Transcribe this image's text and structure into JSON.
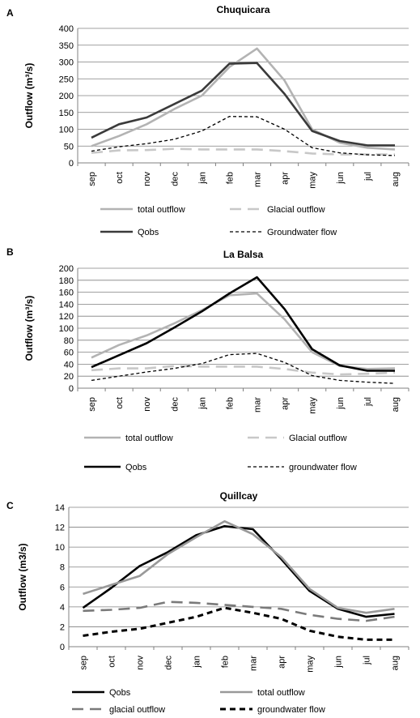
{
  "chart_data": [
    {
      "panel": "A",
      "type": "line",
      "title": "Chuquicara",
      "ylabel": "Outflow (m³/s)",
      "ylim": [
        0,
        400
      ],
      "yticks": [
        0,
        50,
        100,
        150,
        200,
        250,
        300,
        350,
        400
      ],
      "categories": [
        "sep",
        "oct",
        "nov",
        "dec",
        "jan",
        "feb",
        "mar",
        "apr",
        "may",
        "jun",
        "jul",
        "aug"
      ],
      "grid": true,
      "legend_position": "bottom",
      "series": [
        {
          "name": "total outflow",
          "color": "#b3b3b3",
          "dash": "solid",
          "values": [
            50,
            80,
            115,
            160,
            200,
            285,
            340,
            245,
            100,
            60,
            45,
            40
          ]
        },
        {
          "name": "Glacial outflow",
          "color": "#c8c8c8",
          "dash": "long-dash",
          "values": [
            30,
            37,
            38,
            42,
            40,
            40,
            40,
            35,
            28,
            25,
            25,
            25
          ]
        },
        {
          "name": "Qobs",
          "color": "#3a3a3a",
          "dash": "solid",
          "values": [
            75,
            115,
            135,
            175,
            215,
            295,
            297,
            205,
            95,
            65,
            52,
            52
          ]
        },
        {
          "name": "Groundwater flow",
          "color": "#000000",
          "dash": "short-dash",
          "values": [
            35,
            48,
            57,
            70,
            95,
            138,
            137,
            100,
            45,
            30,
            24,
            22
          ]
        }
      ]
    },
    {
      "panel": "B",
      "type": "line",
      "title": "La Balsa",
      "ylabel": "Outflow (m³/s)",
      "ylim": [
        0,
        200
      ],
      "yticks": [
        0,
        20,
        40,
        60,
        80,
        100,
        120,
        140,
        160,
        180,
        200
      ],
      "categories": [
        "sep",
        "oct",
        "nov",
        "dec",
        "jan",
        "feb",
        "mar",
        "apr",
        "may",
        "jun",
        "jul",
        "aug"
      ],
      "grid": true,
      "legend_position": "bottom",
      "series": [
        {
          "name": "total outflow",
          "color": "#b3b3b3",
          "dash": "solid",
          "values": [
            51,
            72,
            88,
            108,
            130,
            155,
            158,
            115,
            60,
            37,
            32,
            33
          ]
        },
        {
          "name": "Glacial outflow",
          "color": "#c8c8c8",
          "dash": "long-dash",
          "values": [
            30,
            33,
            33,
            37,
            36,
            36,
            36,
            32,
            26,
            23,
            24,
            26
          ]
        },
        {
          "name": "Qobs",
          "color": "#000000",
          "dash": "solid",
          "values": [
            35,
            55,
            75,
            101,
            128,
            158,
            185,
            132,
            65,
            38,
            29,
            29
          ]
        },
        {
          "name": "groundwater flow",
          "color": "#000000",
          "dash": "short-dash",
          "values": [
            13,
            20,
            27,
            33,
            41,
            56,
            58,
            43,
            21,
            13,
            10,
            8
          ]
        }
      ]
    },
    {
      "panel": "C",
      "type": "line",
      "title": "Quillcay",
      "ylabel": "Outflow (m3/s)",
      "ylim": [
        0,
        14
      ],
      "yticks": [
        0,
        2,
        4,
        6,
        8,
        10,
        12,
        14
      ],
      "categories": [
        "sep",
        "oct",
        "nov",
        "dec",
        "jan",
        "feb",
        "mar",
        "apr",
        "may",
        "jun",
        "jul",
        "aug"
      ],
      "grid": true,
      "legend_position": "bottom",
      "series": [
        {
          "name": "Qobs",
          "color": "#000000",
          "dash": "solid",
          "values": [
            3.9,
            5.9,
            8.1,
            9.5,
            11.2,
            12.1,
            11.8,
            8.8,
            5.6,
            3.8,
            3.0,
            3.3
          ]
        },
        {
          "name": "total outflow",
          "color": "#999999",
          "dash": "solid",
          "values": [
            5.3,
            6.2,
            7.1,
            9.3,
            11.0,
            12.6,
            11.3,
            9.0,
            5.8,
            3.9,
            3.4,
            3.8
          ]
        },
        {
          "name": "glacial outflow",
          "color": "#7a7a7a",
          "dash": "long-dash",
          "values": [
            3.6,
            3.7,
            3.9,
            4.5,
            4.4,
            4.2,
            4.0,
            3.8,
            3.2,
            2.8,
            2.6,
            3.0
          ]
        },
        {
          "name": "groundwater flow",
          "color": "#000000",
          "dash": "heavy-dash",
          "values": [
            1.1,
            1.5,
            1.8,
            2.4,
            3.0,
            3.9,
            3.4,
            2.8,
            1.6,
            1.0,
            0.7,
            0.7
          ]
        }
      ]
    }
  ]
}
